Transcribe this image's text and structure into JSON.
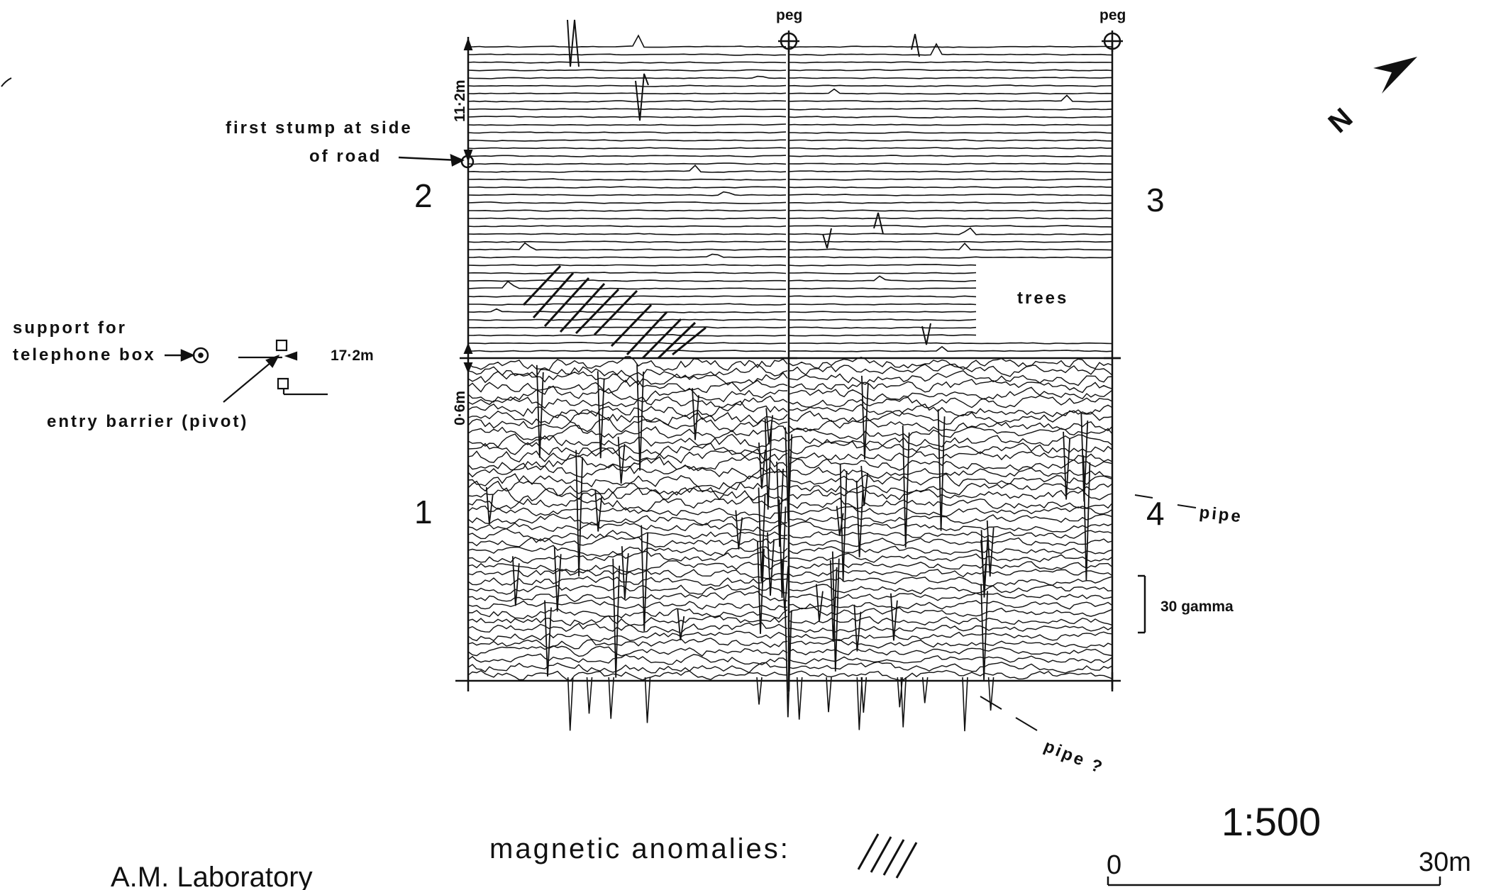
{
  "labels": {
    "peg_left": "peg",
    "peg_right": "peg",
    "first_stump_line1": "first stump at side",
    "first_stump_line2": "of road",
    "support_line1": "support for",
    "support_line2": "telephone box",
    "entry_barrier": "entry barrier (pivot)",
    "dim_upper": "11·2m",
    "dim_middle": "17·2m",
    "dim_lower": "0·6m",
    "trees": "trees",
    "pipe": "pipe",
    "pipe_question": "pipe ?",
    "gamma_scale": "30 gamma",
    "legend_anomalies": "magnetic anomalies:",
    "lab_name": "A.M. Laboratory",
    "scale_ratio": "1:500",
    "scale_zero": "0",
    "scale_end": "30m",
    "north": "N"
  },
  "grid_numbers": [
    "1",
    "2",
    "3",
    "4"
  ],
  "colors": {
    "ink": "#111111",
    "paper": "#ffffff"
  }
}
